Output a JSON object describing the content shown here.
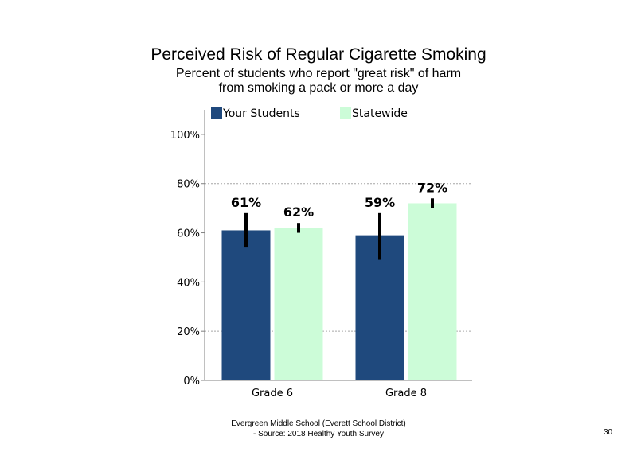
{
  "chart_data": {
    "type": "bar",
    "title": "Perceived Risk of Regular Cigarette Smoking",
    "subtitle_lines": [
      "Percent of students who report \"great risk\" of harm",
      "from smoking a pack or more a day"
    ],
    "categories": [
      "Grade 6",
      "Grade 8"
    ],
    "series": [
      {
        "name": "Your Students",
        "color": "#1f497d",
        "values": [
          61,
          59
        ],
        "labels": [
          "61%",
          "59%"
        ],
        "error_low": [
          54,
          49
        ],
        "error_high": [
          68,
          68
        ]
      },
      {
        "name": "Statewide",
        "color": "#ccfcd8",
        "values": [
          62,
          72
        ],
        "labels": [
          "62%",
          "72%"
        ],
        "error_low": [
          60,
          70
        ],
        "error_high": [
          64,
          74
        ]
      }
    ],
    "ylim": [
      0,
      110
    ],
    "yticks": [
      0,
      20,
      40,
      60,
      80,
      100
    ],
    "ytick_labels": [
      "0%",
      "20%",
      "40%",
      "60%",
      "80%",
      "100%"
    ],
    "gridlines": [
      20,
      80
    ],
    "legend_position": "top"
  },
  "footer": {
    "line1": "Evergreen Middle School (Everett School District)",
    "line2": "- Source: 2018 Healthy Youth Survey"
  },
  "page_number": "30"
}
